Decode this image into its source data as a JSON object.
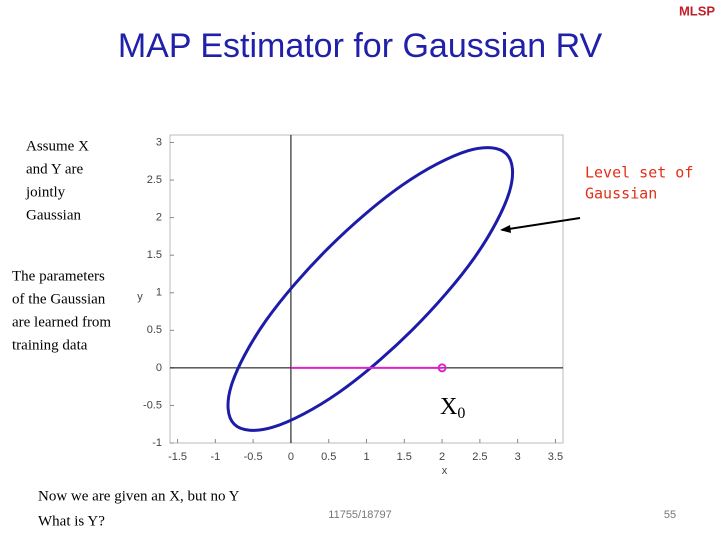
{
  "slide": {
    "logo": "MLSP",
    "title": "MAP Estimator for Gaussian RV",
    "note1": [
      "Assume X",
      "and Y are",
      "jointly",
      "Gaussian"
    ],
    "note2": [
      "The parameters",
      "of the Gaussian",
      "are learned from",
      "training data"
    ],
    "callout": [
      "Level set of",
      "Gaussian"
    ],
    "question": [
      "Now we are given an X, but no Y",
      "What is Y?"
    ],
    "footer": "11755/18797",
    "page": "55"
  },
  "chart_data": {
    "type": "line",
    "xlabel": "x",
    "ylabel": "y",
    "xlim": [
      -1.6,
      3.6
    ],
    "ylim": [
      -1,
      3.1
    ],
    "xticks": [
      -1.5,
      -1,
      -0.5,
      0,
      0.5,
      1,
      1.5,
      2,
      2.5,
      3,
      3.5
    ],
    "yticks": [
      -1,
      -0.5,
      0,
      0.5,
      1,
      1.5,
      2,
      2.5,
      3
    ],
    "annotation": {
      "text": "X",
      "subscript": "0"
    },
    "series": [
      {
        "color": "#1c1ca8",
        "closed": true,
        "x": [
          2.85,
          2.34,
          1.47,
          0.5,
          -0.33,
          -0.79,
          -0.75,
          -0.24,
          0.63,
          1.6,
          2.43,
          2.89
        ],
        "values": [
          2.85,
          2.89,
          2.43,
          1.6,
          0.63,
          -0.24,
          -0.75,
          -0.79,
          -0.33,
          0.5,
          1.47,
          2.34
        ]
      },
      {
        "color": "#e020d0",
        "closed": false,
        "end_marker": true,
        "x": [
          0,
          2
        ],
        "values": [
          0,
          0
        ]
      }
    ]
  }
}
